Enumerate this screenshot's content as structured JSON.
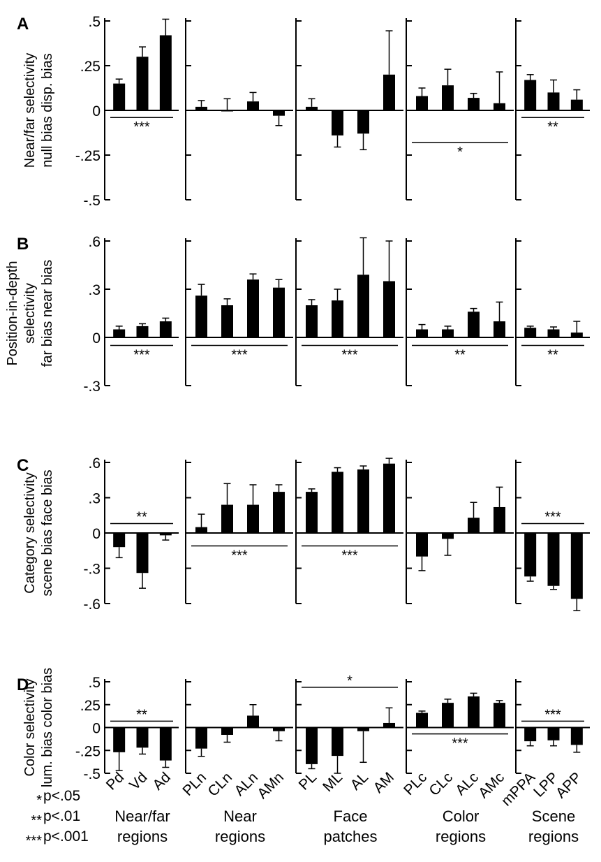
{
  "chart_data": [
    {
      "panel": "A",
      "type": "bar",
      "ylabel_lines": [
        "Near/far selectivity",
        "null bias   disp. bias"
      ],
      "ylim": [
        -0.5,
        0.5
      ],
      "ticks": [
        0.5,
        0.25,
        0,
        -0.25,
        -0.5
      ],
      "tick_labels": [
        ".5",
        ".25",
        "0",
        "-.25",
        "-.5"
      ],
      "groups": [
        {
          "values": [
            0.15,
            0.3,
            0.42
          ],
          "errors": [
            0.025,
            0.055,
            0.09
          ],
          "sig": {
            "label": "***",
            "y": -0.04
          }
        },
        {
          "values": [
            0.02,
            0.0,
            0.05,
            -0.03
          ],
          "errors": [
            0.035,
            0.065,
            0.05,
            0.055
          ],
          "sig": null
        },
        {
          "values": [
            0.02,
            -0.14,
            -0.13,
            0.2
          ],
          "errors": [
            0.045,
            0.065,
            0.09,
            0.245
          ],
          "sig": null
        },
        {
          "values": [
            0.08,
            0.14,
            0.07,
            0.04
          ],
          "errors": [
            0.045,
            0.09,
            0.025,
            0.175
          ],
          "sig": {
            "label": "*",
            "y": -0.18
          }
        },
        {
          "values": [
            0.17,
            0.1,
            0.06
          ],
          "errors": [
            0.03,
            0.07,
            0.055
          ],
          "sig": {
            "label": "**",
            "y": -0.04
          }
        }
      ]
    },
    {
      "panel": "B",
      "type": "bar",
      "ylabel_lines": [
        "Position-in-depth",
        "selectivity",
        "far bias        near bias"
      ],
      "ylim": [
        -0.3,
        0.6
      ],
      "ticks": [
        0.6,
        0.3,
        0,
        -0.3
      ],
      "tick_labels": [
        ".6",
        ".3",
        "0",
        "-.3"
      ],
      "groups": [
        {
          "values": [
            0.05,
            0.07,
            0.1
          ],
          "errors": [
            0.02,
            0.015,
            0.02
          ],
          "sig": {
            "label": "***",
            "y": -0.05
          }
        },
        {
          "values": [
            0.26,
            0.2,
            0.36,
            0.31
          ],
          "errors": [
            0.07,
            0.04,
            0.035,
            0.05
          ],
          "sig": {
            "label": "***",
            "y": -0.05
          }
        },
        {
          "values": [
            0.2,
            0.23,
            0.39,
            0.35
          ],
          "errors": [
            0.035,
            0.07,
            0.23,
            0.25
          ],
          "sig": {
            "label": "***",
            "y": -0.05
          }
        },
        {
          "values": [
            0.05,
            0.05,
            0.16,
            0.1
          ],
          "errors": [
            0.03,
            0.02,
            0.02,
            0.12
          ],
          "sig": {
            "label": "**",
            "y": -0.05
          }
        },
        {
          "values": [
            0.06,
            0.05,
            0.03
          ],
          "errors": [
            0.01,
            0.015,
            0.07
          ],
          "sig": {
            "label": "**",
            "y": -0.05
          }
        }
      ]
    },
    {
      "panel": "C",
      "type": "bar",
      "ylabel_lines": [
        "Category selectivity",
        "scene bias   face bias"
      ],
      "ylim": [
        -0.6,
        0.6
      ],
      "ticks": [
        0.6,
        0.3,
        0,
        -0.3,
        -0.6
      ],
      "tick_labels": [
        ".6",
        ".3",
        "0",
        "-.3",
        "-.6"
      ],
      "groups": [
        {
          "values": [
            -0.12,
            -0.34,
            -0.02
          ],
          "errors": [
            0.09,
            0.13,
            0.04
          ],
          "sig": {
            "label": "**",
            "y": 0.08
          }
        },
        {
          "values": [
            0.05,
            0.24,
            0.24,
            0.35
          ],
          "errors": [
            0.11,
            0.18,
            0.17,
            0.06
          ],
          "sig": {
            "label": "***",
            "y": -0.11
          }
        },
        {
          "values": [
            0.35,
            0.52,
            0.54,
            0.59
          ],
          "errors": [
            0.025,
            0.035,
            0.03,
            0.045
          ],
          "sig": {
            "label": "***",
            "y": -0.11
          }
        },
        {
          "values": [
            -0.2,
            -0.05,
            0.13,
            0.22
          ],
          "errors": [
            0.12,
            0.14,
            0.13,
            0.17
          ],
          "sig": null
        },
        {
          "values": [
            -0.37,
            -0.45,
            -0.56
          ],
          "errors": [
            0.04,
            0.03,
            0.1
          ],
          "sig": {
            "label": "***",
            "y": 0.08
          }
        }
      ]
    },
    {
      "panel": "D",
      "type": "bar",
      "ylabel_lines": [
        "Color selectivity",
        "lum. bias   color bias"
      ],
      "ylim": [
        -0.5,
        0.5
      ],
      "ticks": [
        0.5,
        0.25,
        0,
        -0.25,
        -0.5
      ],
      "tick_labels": [
        ".5",
        ".25",
        "0",
        "-.25",
        "-.5"
      ],
      "groups": [
        {
          "values": [
            -0.27,
            -0.22,
            -0.36
          ],
          "errors": [
            0.2,
            0.07,
            0.075
          ],
          "sig": {
            "label": "**",
            "y": 0.07
          }
        },
        {
          "values": [
            -0.23,
            -0.08,
            0.13,
            -0.04
          ],
          "errors": [
            0.085,
            0.08,
            0.12,
            0.105
          ],
          "sig": null
        },
        {
          "values": [
            -0.4,
            -0.31,
            -0.04,
            0.05
          ],
          "errors": [
            0.05,
            0.19,
            0.34,
            0.165
          ],
          "sig": {
            "label": "*",
            "y": 0.44
          }
        },
        {
          "values": [
            0.16,
            0.27,
            0.34,
            0.27
          ],
          "errors": [
            0.02,
            0.04,
            0.035,
            0.025
          ],
          "sig": {
            "label": "***",
            "y": -0.07
          }
        },
        {
          "values": [
            -0.15,
            -0.14,
            -0.19
          ],
          "errors": [
            0.05,
            0.06,
            0.08
          ],
          "sig": {
            "label": "***",
            "y": 0.07
          }
        }
      ]
    }
  ],
  "x_groups": [
    {
      "categories": [
        "Pd",
        "Vd",
        "Ad"
      ],
      "region_label": [
        "Near/far",
        "regions"
      ]
    },
    {
      "categories": [
        "PLn",
        "CLn",
        "ALn",
        "AMn"
      ],
      "region_label": [
        "Near",
        "regions"
      ]
    },
    {
      "categories": [
        "PL",
        "ML",
        "AL",
        "AM"
      ],
      "region_label": [
        "Face",
        "patches"
      ]
    },
    {
      "categories": [
        "PLc",
        "CLc",
        "ALc",
        "AMc"
      ],
      "region_label": [
        "Color",
        "regions"
      ]
    },
    {
      "categories": [
        "mPPA",
        "LPP",
        "APP"
      ],
      "region_label": [
        "Scene",
        "regions"
      ]
    }
  ],
  "significance_legend": [
    {
      "stars": "*",
      "text": "p<.05"
    },
    {
      "stars": "**",
      "text": "p<.01"
    },
    {
      "stars": "***",
      "text": "p<.001"
    }
  ]
}
